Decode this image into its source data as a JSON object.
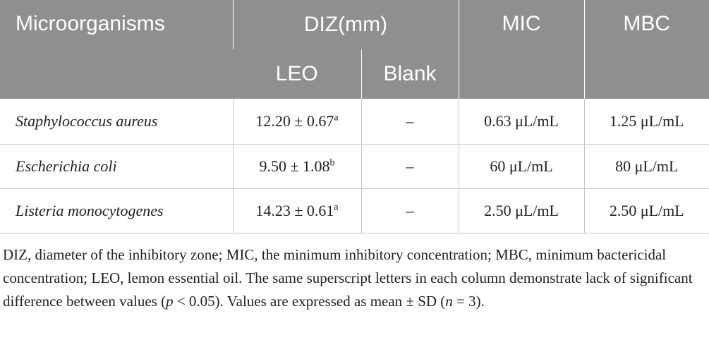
{
  "table": {
    "header": {
      "row1": [
        "Microorganisms",
        "DIZ(mm)",
        "MIC",
        "MBC"
      ],
      "row2": [
        "LEO",
        "Blank"
      ]
    },
    "rows": [
      {
        "organism": "Staphylococcus aureus",
        "leo": "12.20 ± 0.67",
        "leo_sup": "a",
        "blank": "–",
        "mic": "0.63 μL/mL",
        "mbc": "1.25 μL/mL"
      },
      {
        "organism": "Escherichia coli",
        "leo": "9.50 ± 1.08",
        "leo_sup": "b",
        "blank": "–",
        "mic": "60 μL/mL",
        "mbc": "80 μL/mL"
      },
      {
        "organism": "Listeria monocytogenes",
        "leo": "14.23 ± 0.61",
        "leo_sup": "a",
        "blank": "–",
        "mic": "2.50 μL/mL",
        "mbc": "2.50 μL/mL"
      }
    ]
  },
  "footnote": [
    "DIZ, diameter of the inhibitory zone; MIC, the minimum inhibitory concentration; MBC, minimum bactericidal concentration; LEO, lemon essential oil. The same superscript letters in each column demonstrate lack of significant difference between values (",
    "p",
    " < 0.05). Values are expressed as mean ± SD (",
    "n",
    " = 3)."
  ]
}
